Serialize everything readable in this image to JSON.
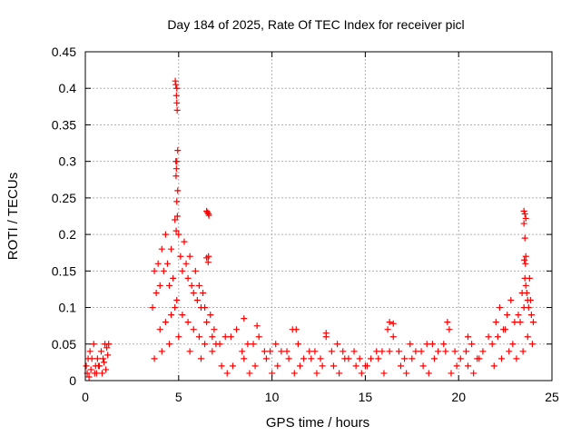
{
  "chart_data": {
    "type": "scatter",
    "title": "Day 184 of 2025, Rate Of TEC Index for receiver picl",
    "xlabel": "GPS time / hours",
    "ylabel": "ROTI / TECUs",
    "xlim": [
      0,
      25
    ],
    "ylim": [
      0,
      0.45
    ],
    "x_ticks": [
      0,
      5,
      10,
      15,
      20,
      25
    ],
    "x_tick_labels": [
      "0",
      "5",
      "10",
      "15",
      "20",
      "25"
    ],
    "y_ticks": [
      0,
      0.05,
      0.1,
      0.15,
      0.2,
      0.25,
      0.3,
      0.35,
      0.4,
      0.45
    ],
    "y_tick_labels": [
      "0",
      "0.05",
      "0.1",
      "0.15",
      "0.2",
      "0.25",
      "0.3",
      "0.35",
      "0.4",
      "0.45"
    ],
    "grid": true,
    "marker": "+",
    "marker_color": "#ff0000",
    "series": [
      {
        "name": "ROTI",
        "x": [
          0.05,
          0.15,
          0.25,
          0.35,
          0.45,
          0.55,
          0.65,
          0.75,
          0.85,
          0.95,
          1.05,
          1.15,
          1.25,
          0.1,
          0.3,
          0.5,
          0.7,
          0.9,
          1.1,
          0.2,
          0.6,
          1.0,
          1.2,
          3.6,
          3.7,
          3.8,
          3.9,
          4.0,
          4.1,
          4.2,
          4.3,
          4.4,
          4.5,
          4.6,
          4.7,
          4.8,
          4.85,
          4.9,
          4.95,
          5.0,
          5.1,
          5.2,
          5.3,
          5.4,
          5.5,
          5.6,
          5.7,
          5.8,
          5.9,
          6.0,
          6.1,
          6.2,
          6.3,
          6.4,
          6.5,
          6.55,
          6.6,
          6.7,
          6.8,
          6.9,
          7.0,
          4.0,
          4.3,
          4.6,
          4.8,
          4.9,
          5.2,
          5.5,
          5.8,
          6.1,
          6.4,
          3.7,
          4.1,
          4.5,
          5.0,
          5.6,
          6.2,
          6.8,
          4.82,
          4.85,
          4.88,
          4.9,
          4.92,
          4.95,
          4.9,
          4.88,
          4.86,
          4.9,
          4.93,
          4.87,
          6.5,
          6.55,
          6.6,
          6.62,
          6.5,
          6.58,
          7.2,
          7.5,
          7.8,
          8.1,
          8.4,
          8.7,
          9.0,
          9.3,
          9.6,
          9.9,
          10.2,
          10.5,
          10.8,
          11.1,
          11.4,
          11.7,
          12.0,
          12.3,
          12.6,
          12.9,
          13.2,
          13.5,
          13.8,
          14.1,
          14.4,
          14.7,
          15.0,
          15.3,
          15.6,
          15.9,
          16.2,
          16.5,
          16.8,
          17.1,
          17.4,
          17.7,
          18.0,
          18.3,
          18.6,
          18.9,
          19.2,
          19.5,
          19.8,
          20.1,
          20.4,
          20.7,
          21.0,
          21.3,
          21.6,
          7.3,
          7.9,
          8.5,
          9.1,
          9.7,
          10.3,
          10.9,
          11.5,
          12.1,
          12.7,
          13.3,
          13.9,
          14.5,
          15.1,
          15.7,
          16.3,
          16.9,
          17.5,
          18.1,
          18.7,
          19.3,
          19.9,
          20.5,
          21.1,
          8.5,
          9.2,
          11.3,
          12.9,
          16.3,
          16.5,
          19.4,
          20.5,
          7.6,
          8.8,
          10.0,
          11.2,
          12.4,
          13.6,
          14.8,
          16.0,
          17.2,
          18.4,
          19.6,
          20.8,
          21.8,
          22.0,
          22.2,
          22.4,
          22.6,
          22.8,
          23.0,
          23.2,
          23.4,
          23.5,
          23.6,
          23.7,
          23.8,
          23.9,
          24.0,
          22.1,
          22.5,
          22.9,
          23.3,
          23.55,
          23.65,
          23.75,
          23.85,
          23.5,
          23.55,
          23.6,
          23.5,
          23.55,
          23.6,
          23.52,
          23.58,
          21.9,
          22.3,
          22.7,
          23.1,
          23.45,
          23.7,
          23.95
        ],
        "y": [
          0.02,
          0.03,
          0.04,
          0.03,
          0.05,
          0.02,
          0.03,
          0.02,
          0.04,
          0.03,
          0.05,
          0.045,
          0.05,
          0.01,
          0.015,
          0.01,
          0.02,
          0.01,
          0.015,
          0.005,
          0.01,
          0.025,
          0.035,
          0.1,
          0.15,
          0.12,
          0.16,
          0.13,
          0.18,
          0.15,
          0.2,
          0.16,
          0.13,
          0.18,
          0.14,
          0.22,
          0.3,
          0.4,
          0.26,
          0.2,
          0.17,
          0.15,
          0.19,
          0.16,
          0.14,
          0.17,
          0.13,
          0.12,
          0.15,
          0.11,
          0.13,
          0.1,
          0.12,
          0.1,
          0.08,
          0.23,
          0.17,
          0.09,
          0.06,
          0.07,
          0.05,
          0.07,
          0.08,
          0.09,
          0.1,
          0.11,
          0.09,
          0.08,
          0.07,
          0.06,
          0.05,
          0.03,
          0.04,
          0.05,
          0.06,
          0.04,
          0.03,
          0.04,
          0.41,
          0.405,
          0.39,
          0.38,
          0.37,
          0.315,
          0.3,
          0.29,
          0.28,
          0.245,
          0.225,
          0.205,
          0.232,
          0.23,
          0.228,
          0.226,
          0.168,
          0.162,
          0.05,
          0.06,
          0.06,
          0.07,
          0.04,
          0.05,
          0.05,
          0.06,
          0.04,
          0.04,
          0.05,
          0.04,
          0.04,
          0.07,
          0.05,
          0.03,
          0.04,
          0.04,
          0.03,
          0.06,
          0.04,
          0.05,
          0.04,
          0.03,
          0.04,
          0.03,
          0.02,
          0.03,
          0.04,
          0.04,
          0.07,
          0.06,
          0.04,
          0.03,
          0.05,
          0.04,
          0.04,
          0.05,
          0.05,
          0.04,
          0.05,
          0.07,
          0.04,
          0.03,
          0.04,
          0.05,
          0.03,
          0.04,
          0.06,
          0.02,
          0.02,
          0.03,
          0.02,
          0.03,
          0.02,
          0.03,
          0.02,
          0.03,
          0.02,
          0.02,
          0.03,
          0.02,
          0.02,
          0.03,
          0.04,
          0.02,
          0.03,
          0.02,
          0.03,
          0.04,
          0.02,
          0.02,
          0.03,
          0.085,
          0.075,
          0.07,
          0.065,
          0.08,
          0.078,
          0.08,
          0.06,
          0.01,
          0.01,
          0.01,
          0.01,
          0.01,
          0.01,
          0.01,
          0.01,
          0.01,
          0.01,
          0.01,
          0.01,
          0.05,
          0.08,
          0.1,
          0.07,
          0.09,
          0.11,
          0.08,
          0.09,
          0.12,
          0.1,
          0.13,
          0.11,
          0.14,
          0.09,
          0.08,
          0.06,
          0.07,
          0.05,
          0.08,
          0.14,
          0.12,
          0.1,
          0.11,
          0.232,
          0.228,
          0.222,
          0.215,
          0.195,
          0.17,
          0.165,
          0.16,
          0.02,
          0.03,
          0.04,
          0.03,
          0.04,
          0.06,
          0.05
        ]
      }
    ]
  }
}
